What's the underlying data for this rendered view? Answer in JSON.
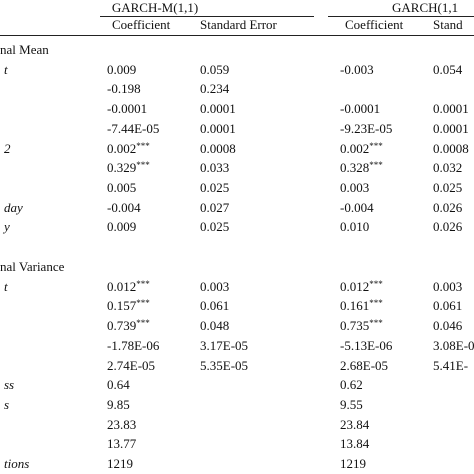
{
  "header": {
    "groups": [
      "GARCH-M(1,1)",
      "GARCH(1,1"
    ],
    "columns": [
      "Coefficient",
      "Standard Error",
      "Coefficient",
      "Stand"
    ]
  },
  "rows": [
    {
      "section": "nal Mean"
    },
    {
      "label": "t",
      "cells": [
        "0.009",
        "0.059",
        "-0.003",
        "0.054"
      ]
    },
    {
      "label": null,
      "cells": [
        "-0.198",
        "0.234",
        null,
        null
      ]
    },
    {
      "label": null,
      "cells": [
        "-0.0001",
        "0.0001",
        "-0.0001",
        "0.0001"
      ]
    },
    {
      "label": null,
      "cells": [
        "-7.44E-05",
        "0.0001",
        "-9.23E-05",
        "0.0001"
      ]
    },
    {
      "label": "2",
      "cells": [
        {
          "text": "0.002",
          "sup": "***"
        },
        "0.0008",
        {
          "text": "0.002",
          "sup": "***"
        },
        "0.0008"
      ]
    },
    {
      "label": null,
      "cells": [
        {
          "text": "0.329",
          "sup": "***"
        },
        "0.033",
        {
          "text": "0.328",
          "sup": "***"
        },
        "0.032"
      ]
    },
    {
      "label": null,
      "cells": [
        "0.005",
        "0.025",
        "0.003",
        "0.025"
      ]
    },
    {
      "label": "day",
      "cells": [
        "-0.004",
        "0.027",
        "-0.004",
        "0.026"
      ]
    },
    {
      "label": "y",
      "cells": [
        "0.009",
        "0.025",
        "0.010",
        "0.026"
      ]
    },
    {
      "section": "nal Variance"
    },
    {
      "label": "t",
      "cells": [
        {
          "text": "0.012",
          "sup": "***"
        },
        "0.003",
        {
          "text": "0.012",
          "sup": "***"
        },
        "0.003"
      ]
    },
    {
      "label": null,
      "cells": [
        {
          "text": "0.157",
          "sup": "***"
        },
        "0.061",
        {
          "text": "0.161",
          "sup": "***"
        },
        "0.061"
      ]
    },
    {
      "label": null,
      "cells": [
        {
          "text": "0.739",
          "sup": "***"
        },
        "0.048",
        {
          "text": "0.735",
          "sup": "***"
        },
        "0.046"
      ]
    },
    {
      "label": null,
      "cells": [
        "-1.78E-06",
        "3.17E-05",
        "-5.13E-06",
        "3.08E-0"
      ]
    },
    {
      "label": null,
      "cells": [
        "2.74E-05",
        "5.35E-05",
        "2.68E-05",
        "5.41E-"
      ]
    },
    {
      "label": "ss",
      "cells": [
        "0.64",
        null,
        "0.62",
        null
      ]
    },
    {
      "label": "s",
      "cells": [
        "9.85",
        null,
        "9.55",
        null
      ]
    },
    {
      "label": null,
      "cells": [
        "23.83",
        null,
        "23.84",
        null
      ]
    },
    {
      "label": null,
      "cells": [
        "13.77",
        null,
        "13.84",
        null
      ]
    },
    {
      "label": "tions",
      "cells": [
        "1219",
        null,
        "1219",
        null
      ]
    }
  ]
}
